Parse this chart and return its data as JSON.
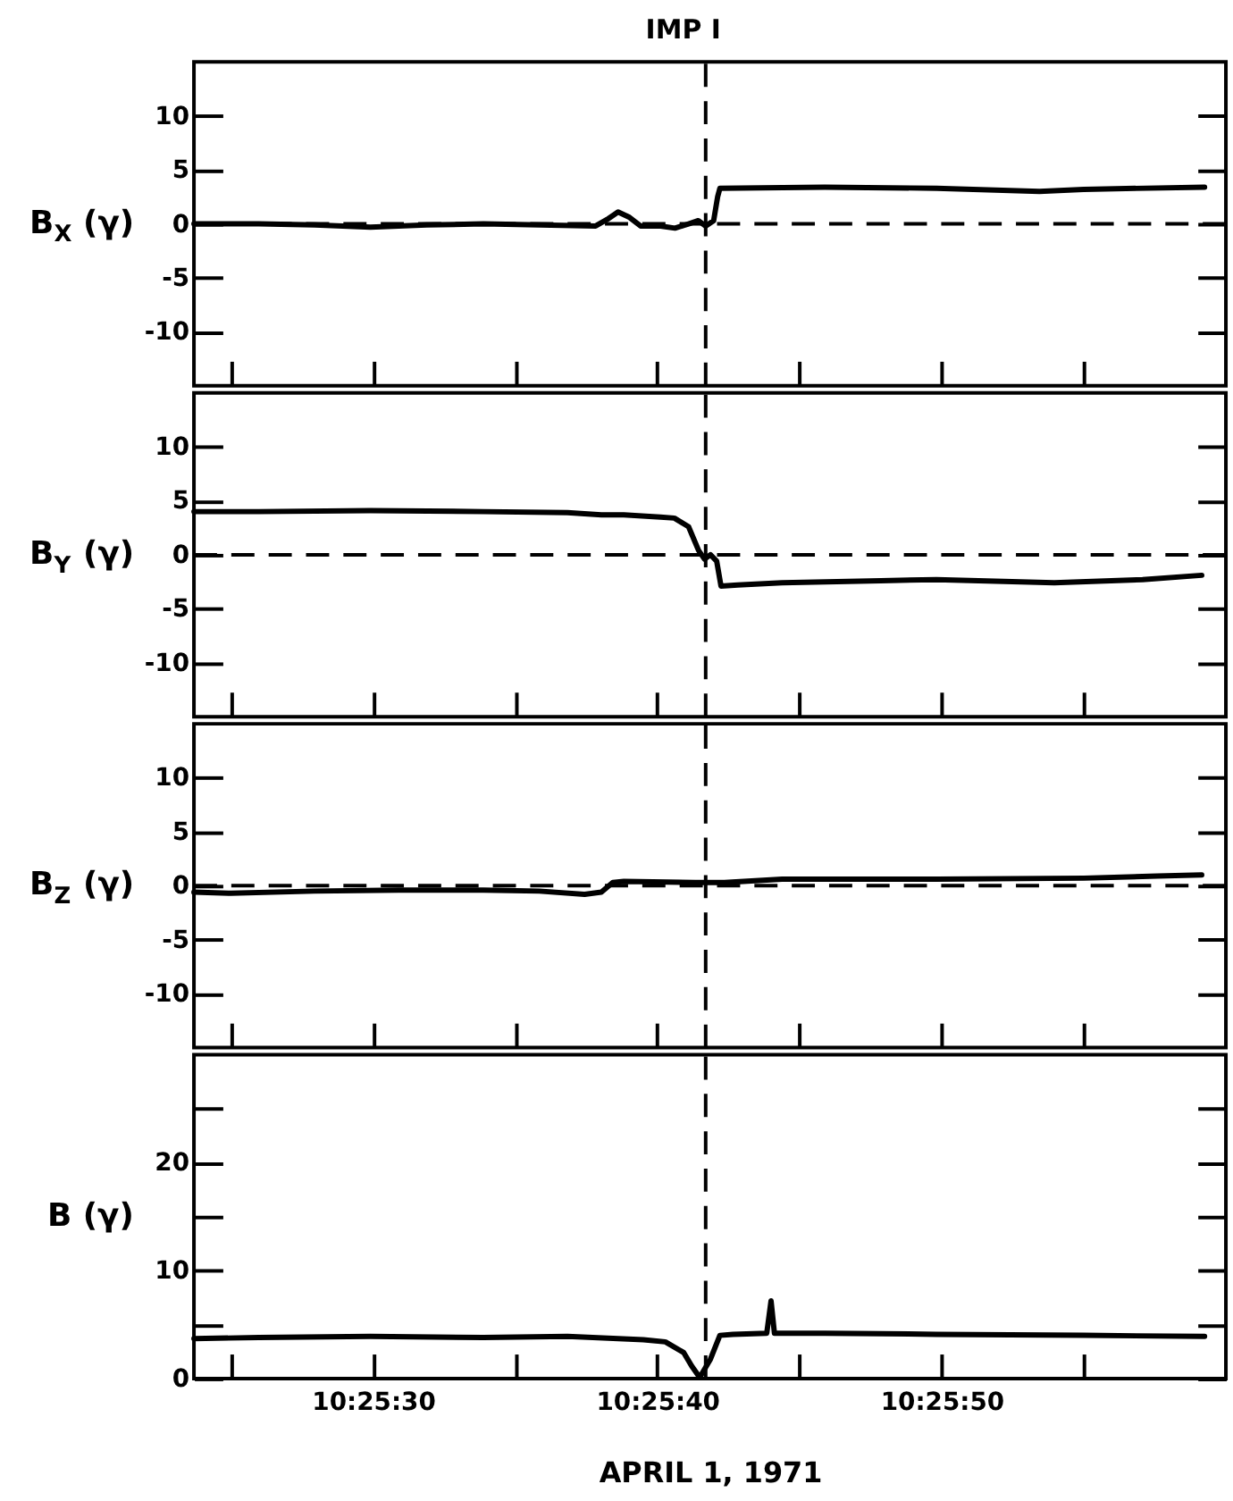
{
  "chart_data": [
    {
      "type": "line",
      "title": "IMP I",
      "ylabel": "B$_{X}$ (γ)",
      "tick_labels": "y",
      "x": [
        10.42325,
        10.423883,
        10.424428,
        10.424975,
        10.425525,
        10.426078,
        10.426625,
        10.427175,
        10.427286,
        10.427394,
        10.427506,
        10.427614,
        10.427808,
        10.42795,
        10.428083,
        10.428178,
        10.42825,
        10.428328,
        10.428367,
        10.428389,
        10.429414,
        10.430506,
        10.431511,
        10.431944,
        10.433125
      ],
      "series": [
        {
          "color": "#000000",
          "line_style": "solid",
          "values": [
            0.0,
            0.0,
            -0.1,
            -0.3,
            -0.1,
            0.0,
            -0.1,
            -0.2,
            0.4,
            1.1,
            0.6,
            -0.2,
            -0.2,
            -0.4,
            0.0,
            0.3,
            -0.2,
            0.3,
            2.5,
            3.3,
            3.4,
            3.3,
            3.0,
            3.2,
            3.4
          ]
        }
      ],
      "xlim": [
        10.42325,
        10.433333
      ],
      "xticks": [
        {
          "value": 10.423611,
          "label": null
        },
        {
          "value": 10.425,
          "label": null
        },
        {
          "value": 10.426389,
          "label": null
        },
        {
          "value": 10.427778,
          "label": null
        },
        {
          "value": 10.429167,
          "label": null
        },
        {
          "value": 10.430556,
          "label": null
        },
        {
          "value": 10.431944,
          "label": null
        }
      ],
      "ylim": [
        -15,
        15
      ],
      "yticks": [
        -10,
        -5,
        0,
        5,
        10
      ],
      "ref_lines": [
        {
          "axis": "x",
          "value": 10.42825,
          "line_style": "dashed",
          "color": "#000000"
        },
        {
          "axis": "y",
          "value": 0,
          "line_style": "dashed",
          "color": "#000000"
        }
      ]
    },
    {
      "type": "line",
      "ylabel": "B$_{Y}$ (γ)",
      "tick_labels": "y",
      "x": [
        10.42325,
        10.423883,
        10.424975,
        10.426078,
        10.4269,
        10.427231,
        10.42745,
        10.427808,
        10.427944,
        10.428083,
        10.428181,
        10.428239,
        10.428297,
        10.428358,
        10.4284,
        10.428564,
        10.428997,
        10.429961,
        10.430506,
        10.431656,
        10.432519,
        10.433097
      ],
      "series": [
        {
          "color": "#000000",
          "line_style": "solid",
          "values": [
            4.0,
            4.0,
            4.1,
            4.0,
            3.9,
            3.7,
            3.7,
            3.5,
            3.4,
            2.6,
            0.4,
            -0.4,
            0.0,
            -0.6,
            -2.9,
            -2.8,
            -2.6,
            -2.4,
            -2.3,
            -2.6,
            -2.3,
            -1.9
          ]
        }
      ],
      "xlim": [
        10.42325,
        10.433333
      ],
      "xticks": [
        {
          "value": 10.423611,
          "label": null
        },
        {
          "value": 10.425,
          "label": null
        },
        {
          "value": 10.426389,
          "label": null
        },
        {
          "value": 10.427778,
          "label": null
        },
        {
          "value": 10.429167,
          "label": null
        },
        {
          "value": 10.430556,
          "label": null
        },
        {
          "value": 10.431944,
          "label": null
        }
      ],
      "ylim": [
        -15,
        15
      ],
      "yticks": [
        -10,
        -5,
        0,
        5,
        10
      ],
      "ref_lines": [
        {
          "axis": "x",
          "value": 10.42825,
          "line_style": "dashed",
          "color": "#000000"
        },
        {
          "axis": "y",
          "value": 0,
          "line_style": "dashed",
          "color": "#000000"
        }
      ]
    },
    {
      "type": "line",
      "ylabel": "B$_{Z}$ (γ)",
      "tick_labels": "y",
      "x": [
        10.42325,
        10.423611,
        10.424428,
        10.42525,
        10.426078,
        10.426625,
        10.427067,
        10.427231,
        10.427342,
        10.42745,
        10.428147,
        10.428433,
        10.428997,
        10.430506,
        10.431944,
        10.432664,
        10.433097
      ],
      "series": [
        {
          "color": "#000000",
          "line_style": "solid",
          "values": [
            -0.6,
            -0.7,
            -0.5,
            -0.4,
            -0.4,
            -0.5,
            -0.8,
            -0.6,
            0.3,
            0.4,
            0.3,
            0.3,
            0.6,
            0.6,
            0.7,
            0.9,
            1.0
          ]
        }
      ],
      "xlim": [
        10.42325,
        10.433333
      ],
      "xticks": [
        {
          "value": 10.423611,
          "label": null
        },
        {
          "value": 10.425,
          "label": null
        },
        {
          "value": 10.426389,
          "label": null
        },
        {
          "value": 10.427778,
          "label": null
        },
        {
          "value": 10.429167,
          "label": null
        },
        {
          "value": 10.430556,
          "label": null
        },
        {
          "value": 10.431944,
          "label": null
        }
      ],
      "ylim": [
        -15,
        15
      ],
      "yticks": [
        -10,
        -5,
        0,
        5,
        10
      ],
      "ref_lines": [
        {
          "axis": "x",
          "value": 10.42825,
          "line_style": "dashed",
          "color": "#000000"
        },
        {
          "axis": "y",
          "value": 0,
          "line_style": "dashed",
          "color": "#000000"
        }
      ]
    },
    {
      "type": "line",
      "ylabel": "B (γ)",
      "xlabel": "APRIL 1, 1971",
      "x": [
        10.42325,
        10.423883,
        10.424975,
        10.426078,
        10.4269,
        10.427642,
        10.427856,
        10.428036,
        10.428111,
        10.428192,
        10.428297,
        10.428389,
        10.428517,
        10.428847,
        10.428889,
        10.428922,
        10.429414,
        10.430506,
        10.431944,
        10.433125
      ],
      "series": [
        {
          "color": "#000000",
          "line_style": "solid",
          "values": [
            3.7,
            3.8,
            3.9,
            3.8,
            3.9,
            3.6,
            3.4,
            2.4,
            1.2,
            0.1,
            1.8,
            4.0,
            4.1,
            4.2,
            7.2,
            4.2,
            4.2,
            4.1,
            4.0,
            3.9
          ]
        }
      ],
      "xlim": [
        10.42325,
        10.433333
      ],
      "xticks": [
        {
          "value": 10.423611,
          "label": null
        },
        {
          "value": 10.425,
          "label": "10:25:30"
        },
        {
          "value": 10.426389,
          "label": null
        },
        {
          "value": 10.427778,
          "label": "10:25:40"
        },
        {
          "value": 10.429167,
          "label": null
        },
        {
          "value": 10.430556,
          "label": "10:25:50"
        },
        {
          "value": 10.431944,
          "label": null
        }
      ],
      "ylim": [
        0,
        30
      ],
      "yticks": [
        0,
        {
          "value": 5,
          "label": null
        },
        10,
        {
          "value": 15,
          "label": null
        },
        20,
        {
          "value": 25,
          "label": null
        }
      ],
      "ref_lines": [
        {
          "axis": "x",
          "value": 10.42825,
          "line_style": "dashed",
          "color": "#000000"
        }
      ]
    }
  ]
}
